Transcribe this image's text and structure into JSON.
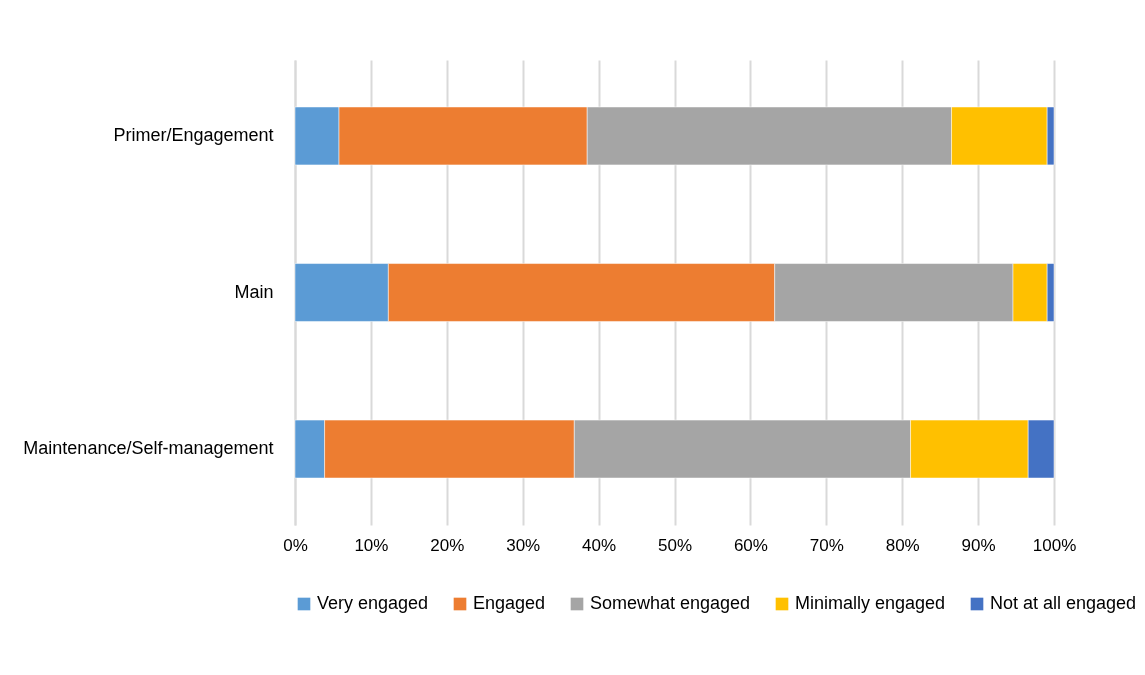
{
  "chart_data": {
    "type": "bar",
    "orientation": "horizontal",
    "stacked": true,
    "categories": [
      "Primer/Engagement",
      "Main",
      "Maintenance/Self-management"
    ],
    "series": [
      {
        "name": "Very engaged",
        "color": "#5b9bd5",
        "values": [
          5.8,
          12.3,
          3.9
        ]
      },
      {
        "name": "Engaged",
        "color": "#ed7d31",
        "values": [
          32.7,
          50.9,
          32.9
        ]
      },
      {
        "name": "Somewhat engaged",
        "color": "#a5a5a5",
        "values": [
          48.0,
          31.4,
          44.3
        ]
      },
      {
        "name": "Minimally engaged",
        "color": "#ffc000",
        "values": [
          12.6,
          4.5,
          15.5
        ]
      },
      {
        "name": "Not at all engaged",
        "color": "#4472c4",
        "values": [
          0.9,
          0.9,
          3.4
        ]
      }
    ],
    "xlim": [
      0,
      100
    ],
    "xticks": [
      {
        "value": 0,
        "label": "0%"
      },
      {
        "value": 10,
        "label": "10%"
      },
      {
        "value": 20,
        "label": "20%"
      },
      {
        "value": 30,
        "label": "30%"
      },
      {
        "value": 40,
        "label": "40%"
      },
      {
        "value": 50,
        "label": "50%"
      },
      {
        "value": 60,
        "label": "60%"
      },
      {
        "value": 70,
        "label": "70%"
      },
      {
        "value": 80,
        "label": "80%"
      },
      {
        "value": 90,
        "label": "90%"
      },
      {
        "value": 100,
        "label": "100%"
      }
    ],
    "grid": "x",
    "legend": "bottom"
  }
}
